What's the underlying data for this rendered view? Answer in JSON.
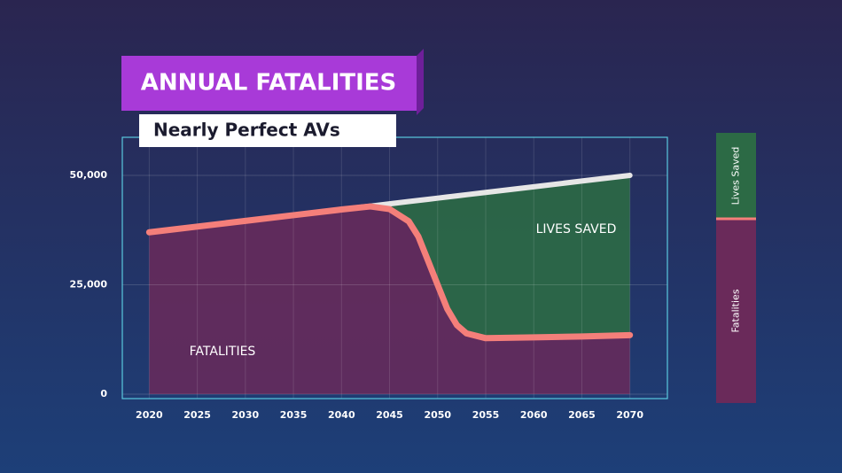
{
  "chart_data": {
    "type": "area",
    "title": "ANNUAL FATALITIES",
    "subtitle": "Nearly Perfect AVs",
    "annotations": [
      "LIVES SAVED",
      "FATALITIES"
    ],
    "x": [
      2020,
      2025,
      2030,
      2035,
      2040,
      2043,
      2045,
      2047,
      2048,
      2049,
      2050,
      2051,
      2052,
      2053,
      2055,
      2060,
      2065,
      2070
    ],
    "series": [
      {
        "name": "Fatalities",
        "color": "#6a2a5a",
        "line_color": "#f47f7a",
        "values": [
          37000,
          38300,
          39600,
          40900,
          42200,
          42900,
          42300,
          39500,
          36000,
          30500,
          25000,
          19500,
          15800,
          13900,
          12800,
          13000,
          13200,
          13500
        ]
      },
      {
        "name": "Lives Saved",
        "color": "#2c6a45",
        "line_color": "#e6e6e6",
        "values": [
          0,
          0,
          0,
          0,
          0,
          80,
          1200,
          4520,
          8280,
          14040,
          19800,
          25560,
          29520,
          31680,
          33300,
          34400,
          35500,
          36500
        ]
      }
    ],
    "stacked": true,
    "xlim": [
      2017.2,
      2073.9
    ],
    "xticks": [
      2020,
      2025,
      2030,
      2035,
      2040,
      2045,
      2050,
      2055,
      2060,
      2065,
      2070
    ],
    "ylim": [
      -1000,
      58700
    ],
    "yticks": [
      0,
      {
        "value": 25000,
        "label": "25,000"
      },
      {
        "value": 50000,
        "label": "50,000"
      }
    ],
    "grid": true
  }
}
